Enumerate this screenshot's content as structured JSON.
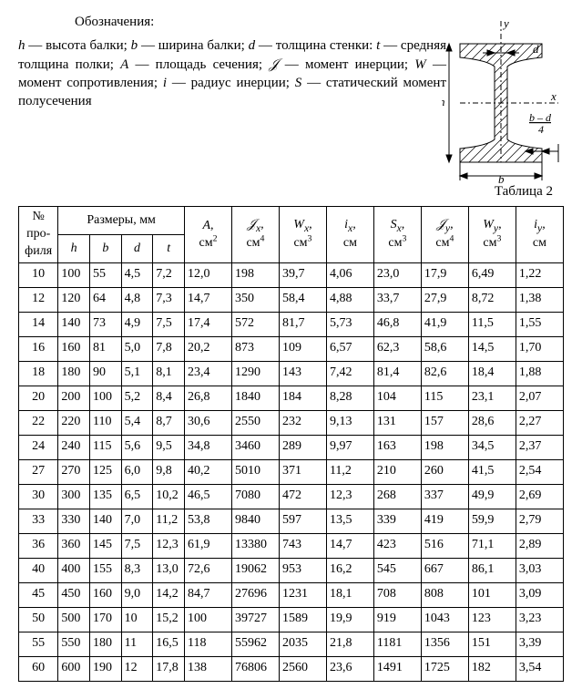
{
  "designations": {
    "title": "Обозначения:",
    "body_html": "<i>h</i> — высота балки; <i>b</i> — ширина балки; <i>d</i> — толщина стенки: <i>t</i> — средняя толщина полки; <i>A</i> — площадь сечения; <i>𝒥</i> — момент инерции; <i>W</i> — момент сопротивления; <i>i</i> — радиус инерции; <i>S</i> — статический момент полусечения"
  },
  "diagram": {
    "name": "i-beam-cross-section",
    "labels": {
      "y": "y",
      "d": "d",
      "x": "x",
      "h": "h",
      "b": "b",
      "formula": "b – d",
      "formula2": "4"
    }
  },
  "table_caption": "Таблица 2",
  "columns": {
    "profile": {
      "l1": "№",
      "l2": "про-",
      "l3": "филя"
    },
    "dims_group": "Размеры, мм",
    "dims": [
      "h",
      "b",
      "d",
      "t"
    ],
    "A": {
      "sym": "A,",
      "unit": "см<sup>2</sup>"
    },
    "Jx": {
      "sym": "𝒥<sub>x</sub>,",
      "unit": "см<sup>4</sup>"
    },
    "Wx": {
      "sym": "W<sub>x</sub>,",
      "unit": "см<sup>3</sup>"
    },
    "ix": {
      "sym": "i<sub>x</sub>,",
      "unit": "см"
    },
    "Sx": {
      "sym": "S<sub>x</sub>,",
      "unit": "см<sup>3</sup>"
    },
    "Jy": {
      "sym": "𝒥<sub>y</sub>,",
      "unit": "см<sup>4</sup>"
    },
    "Wy": {
      "sym": "W<sub>y</sub>,",
      "unit": "см<sup>3</sup>"
    },
    "iy": {
      "sym": "i<sub>y</sub>,",
      "unit": "см"
    }
  },
  "rows": [
    [
      "10",
      "100",
      "55",
      "4,5",
      "7,2",
      "12,0",
      "198",
      "39,7",
      "4,06",
      "23,0",
      "17,9",
      "6,49",
      "1,22"
    ],
    [
      "12",
      "120",
      "64",
      "4,8",
      "7,3",
      "14,7",
      "350",
      "58,4",
      "4,88",
      "33,7",
      "27,9",
      "8,72",
      "1,38"
    ],
    [
      "14",
      "140",
      "73",
      "4,9",
      "7,5",
      "17,4",
      "572",
      "81,7",
      "5,73",
      "46,8",
      "41,9",
      "11,5",
      "1,55"
    ],
    [
      "16",
      "160",
      "81",
      "5,0",
      "7,8",
      "20,2",
      "873",
      "109",
      "6,57",
      "62,3",
      "58,6",
      "14,5",
      "1,70"
    ],
    [
      "18",
      "180",
      "90",
      "5,1",
      "8,1",
      "23,4",
      "1290",
      "143",
      "7,42",
      "81,4",
      "82,6",
      "18,4",
      "1,88"
    ],
    [
      "20",
      "200",
      "100",
      "5,2",
      "8,4",
      "26,8",
      "1840",
      "184",
      "8,28",
      "104",
      "115",
      "23,1",
      "2,07"
    ],
    [
      "22",
      "220",
      "110",
      "5,4",
      "8,7",
      "30,6",
      "2550",
      "232",
      "9,13",
      "131",
      "157",
      "28,6",
      "2,27"
    ],
    [
      "24",
      "240",
      "115",
      "5,6",
      "9,5",
      "34,8",
      "3460",
      "289",
      "9,97",
      "163",
      "198",
      "34,5",
      "2,37"
    ],
    [
      "27",
      "270",
      "125",
      "6,0",
      "9,8",
      "40,2",
      "5010",
      "371",
      "11,2",
      "210",
      "260",
      "41,5",
      "2,54"
    ],
    [
      "30",
      "300",
      "135",
      "6,5",
      "10,2",
      "46,5",
      "7080",
      "472",
      "12,3",
      "268",
      "337",
      "49,9",
      "2,69"
    ],
    [
      "33",
      "330",
      "140",
      "7,0",
      "11,2",
      "53,8",
      "9840",
      "597",
      "13,5",
      "339",
      "419",
      "59,9",
      "2,79"
    ],
    [
      "36",
      "360",
      "145",
      "7,5",
      "12,3",
      "61,9",
      "13380",
      "743",
      "14,7",
      "423",
      "516",
      "71,1",
      "2,89"
    ],
    [
      "40",
      "400",
      "155",
      "8,3",
      "13,0",
      "72,6",
      "19062",
      "953",
      "16,2",
      "545",
      "667",
      "86,1",
      "3,03"
    ],
    [
      "45",
      "450",
      "160",
      "9,0",
      "14,2",
      "84,7",
      "27696",
      "1231",
      "18,1",
      "708",
      "808",
      "101",
      "3,09"
    ],
    [
      "50",
      "500",
      "170",
      "10",
      "15,2",
      "100",
      "39727",
      "1589",
      "19,9",
      "919",
      "1043",
      "123",
      "3,23"
    ],
    [
      "55",
      "550",
      "180",
      "11",
      "16,5",
      "118",
      "55962",
      "2035",
      "21,8",
      "1181",
      "1356",
      "151",
      "3,39"
    ],
    [
      "60",
      "600",
      "190",
      "12",
      "17,8",
      "138",
      "76806",
      "2560",
      "23,6",
      "1491",
      "1725",
      "182",
      "3,54"
    ]
  ]
}
